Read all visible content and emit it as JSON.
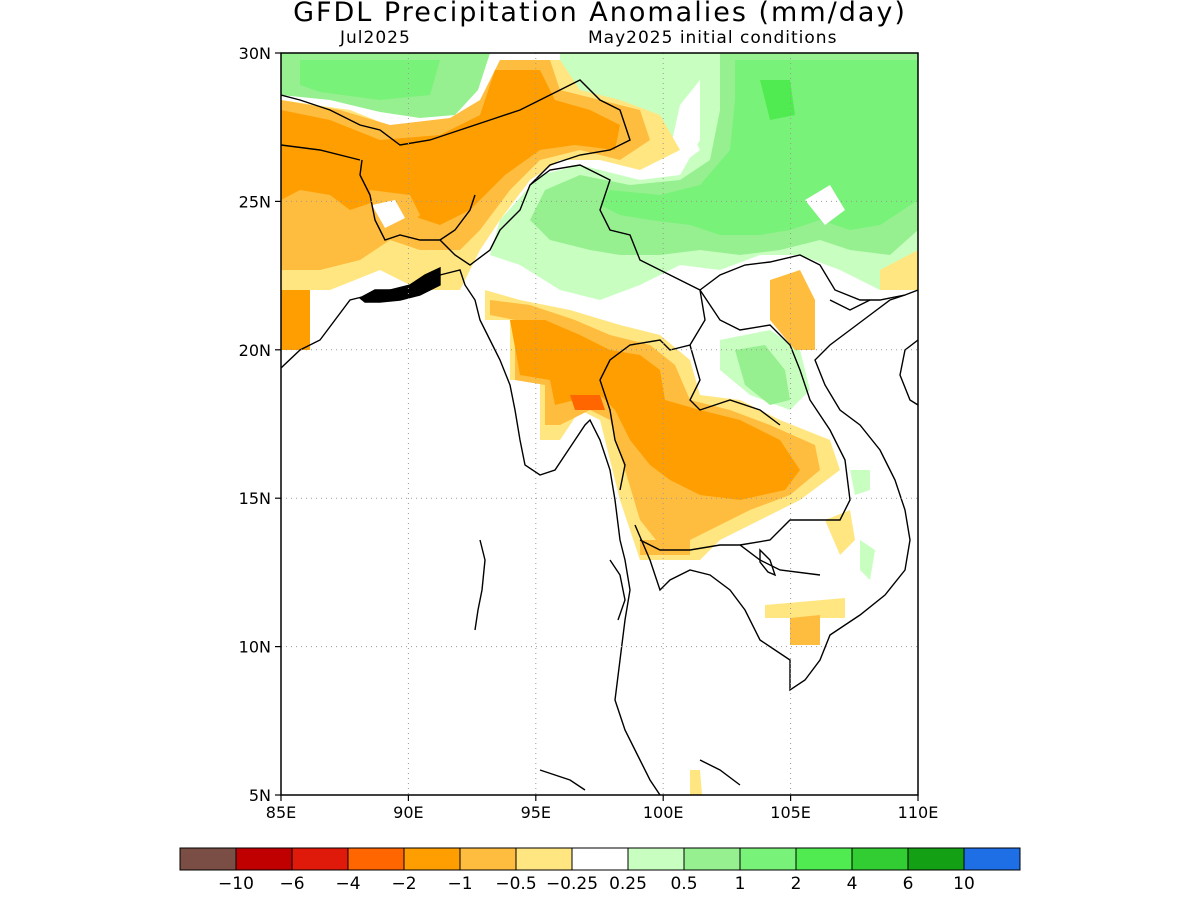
{
  "title": "GFDL Precipitation Anomalies (mm/day)",
  "subtitle_left": "Jul2025",
  "subtitle_right": "May2025 initial conditions",
  "map": {
    "lon_range": [
      85,
      110
    ],
    "lat_range": [
      5,
      30
    ],
    "lon_ticks": [
      "85E",
      "90E",
      "95E",
      "100E",
      "105E",
      "110E"
    ],
    "lat_ticks": [
      "5N",
      "10N",
      "15N",
      "20N",
      "25N",
      "30N"
    ],
    "grid": "dotted"
  },
  "colorbar": {
    "colors": [
      "#7a4e44",
      "#c00000",
      "#e01a0a",
      "#ff6600",
      "#ff9e00",
      "#ffbd40",
      "#ffe680",
      "#ffffff",
      "#c8ffc0",
      "#96f090",
      "#78f278",
      "#50eb50",
      "#32cd32",
      "#14a014",
      "#1e6ee6"
    ],
    "labels": [
      "-10",
      "-6",
      "-4",
      "-2",
      "-1",
      "-0.5",
      "-0.25",
      "0.25",
      "0.5",
      "1",
      "2",
      "4",
      "6",
      "10"
    ]
  },
  "legend_colors": {
    "strong_neg": "#ff9e00",
    "moderate_neg": "#ffbd40",
    "weak_neg": "#ffe680",
    "weak_pos": "#c8ffc0",
    "moderate_pos": "#96f090",
    "strong_pos": "#78f278",
    "very_strong_pos": "#50eb50",
    "very_strong_neg": "#ff6600"
  }
}
